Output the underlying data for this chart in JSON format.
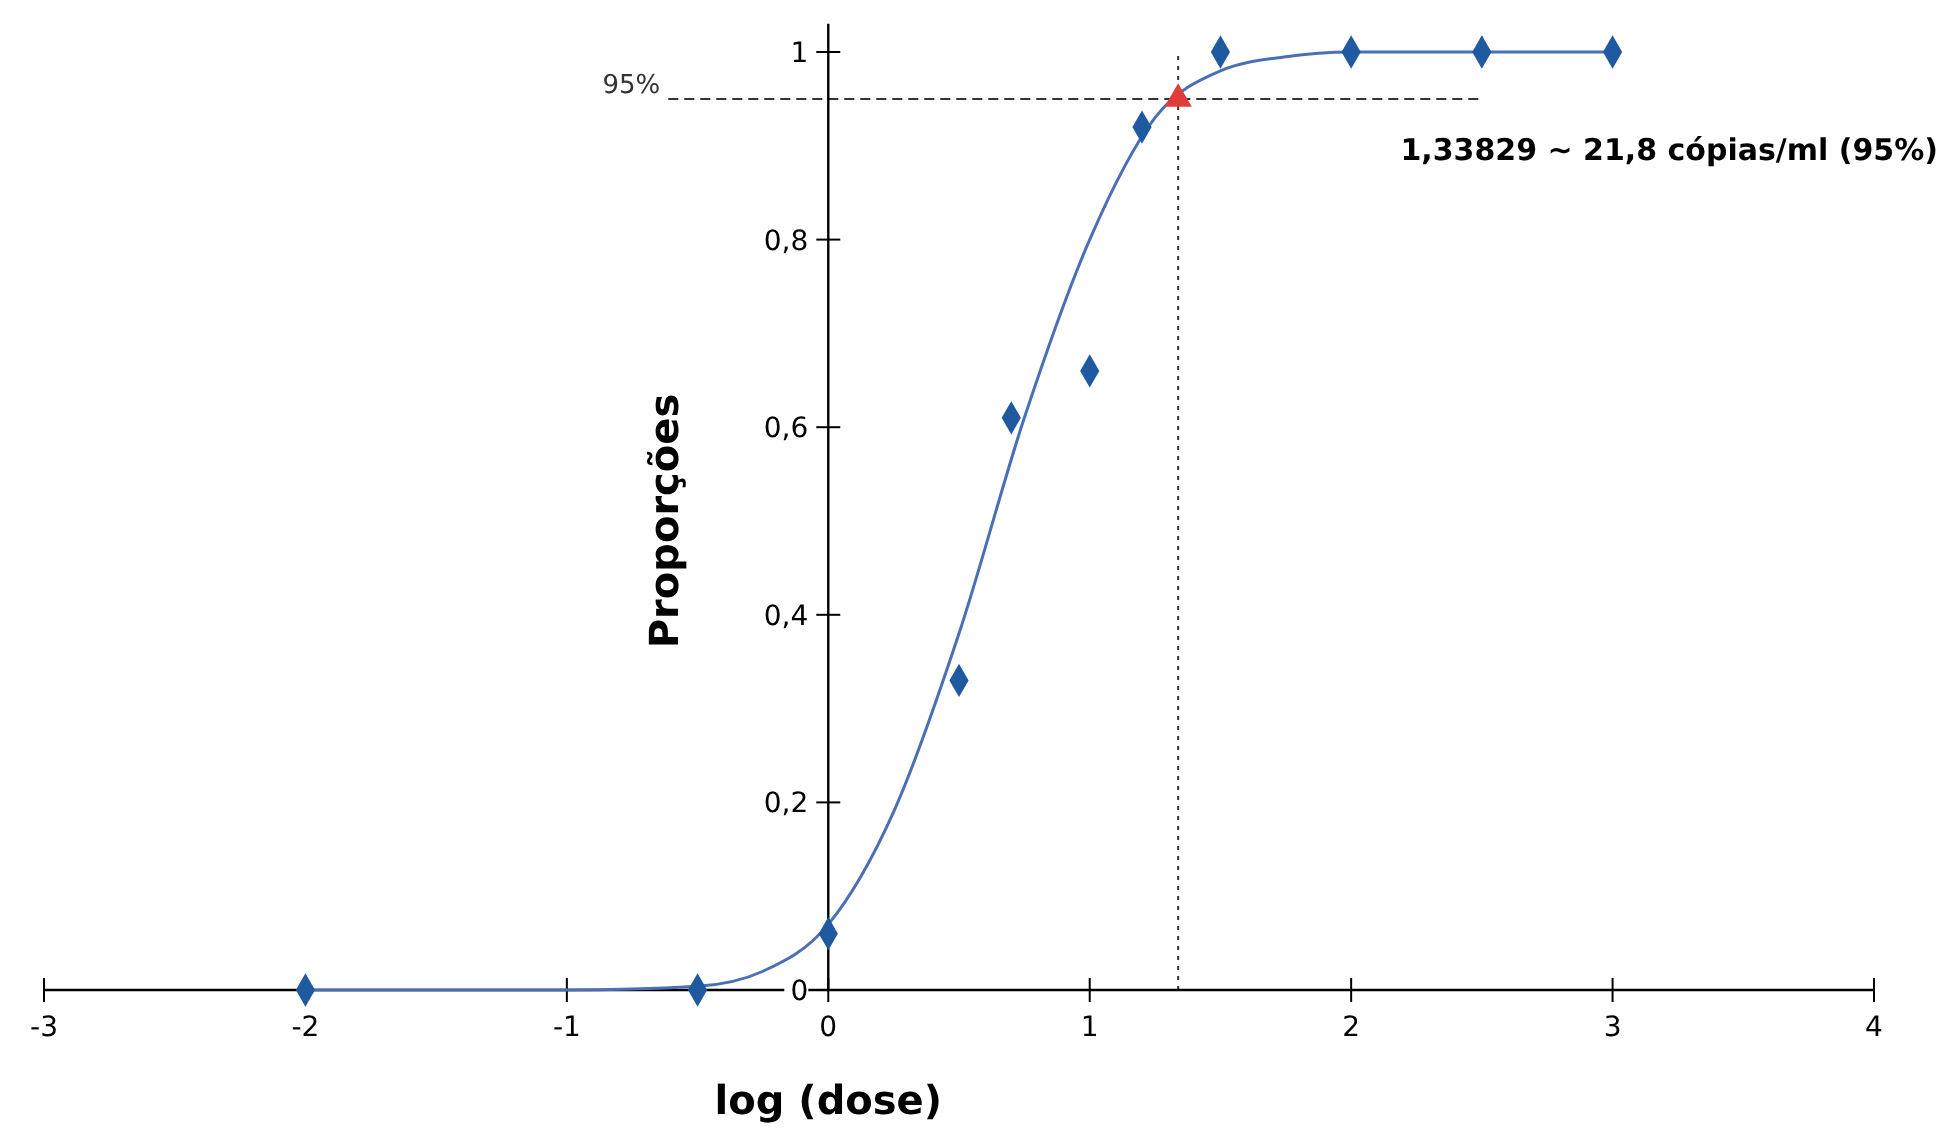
{
  "chart_data": {
    "type": "scatter",
    "xlabel": "log (dose)",
    "ylabel": "Proporções",
    "xlim": [
      -3,
      4
    ],
    "xticks": [
      -3,
      -2,
      -1,
      0,
      1,
      2,
      3,
      4
    ],
    "ylim": [
      0,
      1.03
    ],
    "yticks": [
      {
        "value": 0,
        "label": "0"
      },
      {
        "value": 0.2,
        "label": "0,2"
      },
      {
        "value": 0.4,
        "label": "0,4"
      },
      {
        "value": 0.6,
        "label": "0,6"
      },
      {
        "value": 0.8,
        "label": "0,8"
      },
      {
        "value": 1,
        "label": "1"
      }
    ],
    "grid": false,
    "series": [
      {
        "type": "line",
        "color": "#4a6fb5",
        "marker": "none",
        "x": [
          -2,
          -1,
          -0.5,
          -0.25,
          0,
          0.25,
          0.5,
          0.75,
          1,
          1.25,
          1.5,
          1.75,
          2,
          2.5,
          3
        ],
        "values": [
          0,
          0,
          0.004,
          0.02,
          0.07,
          0.19,
          0.38,
          0.61,
          0.8,
          0.93,
          0.98,
          0.995,
          1,
          1,
          1
        ]
      },
      {
        "color": "#1f5aa0",
        "marker": "diamond",
        "x": [
          -2,
          -0.5,
          0,
          0.5,
          0.7,
          1,
          1.2,
          1.5,
          2,
          2.5,
          3
        ],
        "values": [
          0,
          0,
          0.06,
          0.33,
          0.61,
          0.66,
          0.92,
          1,
          1,
          1,
          1
        ]
      },
      {
        "color": "#e03c3c",
        "marker": "triangle",
        "x": [
          1.33829
        ],
        "values": [
          0.95
        ]
      }
    ],
    "ref_lines": [
      {
        "axis": "y",
        "value": 0.95,
        "label": "95%",
        "line_style": "dashed"
      },
      {
        "axis": "x",
        "value": 1.33829,
        "line_style": "dotted"
      }
    ],
    "annotations": [
      "1,33829 ~ 21,8 cópias/ml (95%)"
    ]
  }
}
